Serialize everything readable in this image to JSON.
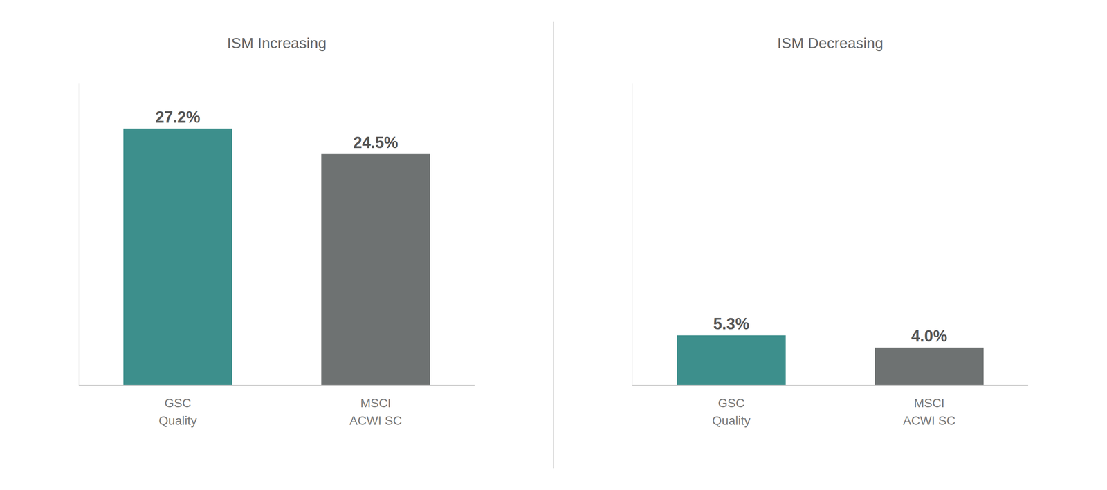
{
  "chart_data": [
    {
      "type": "bar",
      "title": "ISM Increasing",
      "categories": [
        "GSC\nQuality",
        "MSCI\nACWI SC"
      ],
      "values": [
        27.2,
        24.5
      ],
      "value_labels": [
        "27.2%",
        "24.5%"
      ],
      "colors": [
        "#3d8f8c",
        "#6e7272"
      ],
      "ylim": [
        0,
        32
      ],
      "data_labels": true,
      "tick_labels": "x",
      "grid": false
    },
    {
      "type": "bar",
      "title": "ISM Decreasing",
      "categories": [
        "GSC\nQuality",
        "MSCI\nACWI SC"
      ],
      "values": [
        5.3,
        4.0
      ],
      "value_labels": [
        "5.3%",
        "4.0%"
      ],
      "colors": [
        "#3d8f8c",
        "#6e7272"
      ],
      "ylim": [
        0,
        32
      ],
      "data_labels": true,
      "tick_labels": "x",
      "grid": false
    }
  ]
}
